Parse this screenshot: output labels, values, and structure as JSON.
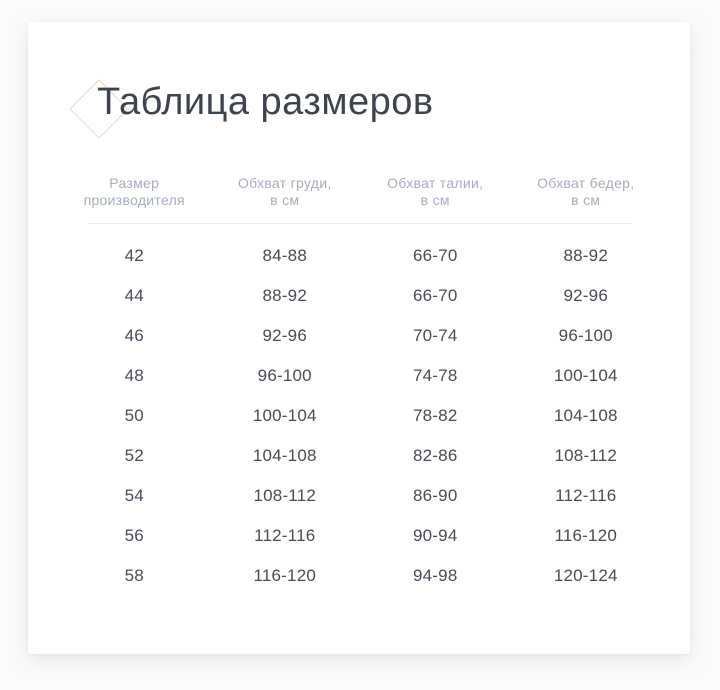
{
  "page": {
    "title": "Таблица размеров"
  },
  "size_table": {
    "headers": [
      {
        "line1": "Размер",
        "line2": "производителя"
      },
      {
        "line1": "Обхват груди,",
        "line2": "в см"
      },
      {
        "line1": "Обхват талии,",
        "line2": "в см"
      },
      {
        "line1": "Обхват бедер,",
        "line2": "в см"
      }
    ],
    "rows": [
      [
        "42",
        "84-88",
        "66-70",
        "88-92"
      ],
      [
        "44",
        "88-92",
        "66-70",
        "92-96"
      ],
      [
        "46",
        "92-96",
        "70-74",
        "96-100"
      ],
      [
        "48",
        "96-100",
        "74-78",
        "100-104"
      ],
      [
        "50",
        "100-104",
        "78-82",
        "104-108"
      ],
      [
        "52",
        "104-108",
        "82-86",
        "108-112"
      ],
      [
        "54",
        "108-112",
        "86-90",
        "112-116"
      ],
      [
        "56",
        "112-116",
        "90-94",
        "116-120"
      ],
      [
        "58",
        "116-120",
        "94-98",
        "120-124"
      ]
    ]
  },
  "colors": {
    "page_bg": "#fbfbfb",
    "card_bg": "#ffffff",
    "title_text": "#3d434f",
    "header_text": "#a6adbb",
    "body_text": "#464c58",
    "divider": "#e9eaf1",
    "diamond_accent": "#f3d7c7"
  }
}
